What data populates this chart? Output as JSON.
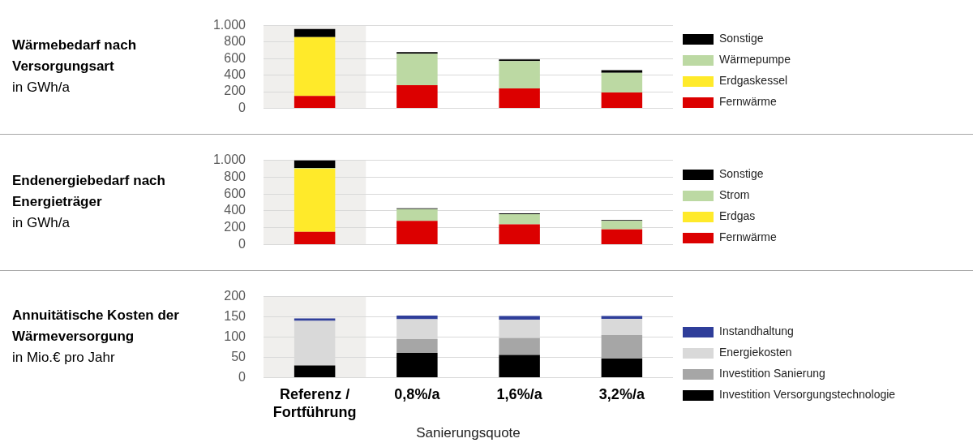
{
  "chart_data": [
    {
      "type": "bar",
      "title": "Wärmebedarf nach Versorgungsart",
      "ylabel": "in GWh/a",
      "stacked": true,
      "categories": [
        "Referenz / Fortführung",
        "0,8%/a",
        "1,6%/a",
        "3,2%/a"
      ],
      "series": [
        {
          "name": "Fernwärme",
          "color": "#dc0000",
          "values": [
            150,
            280,
            240,
            190
          ]
        },
        {
          "name": "Erdgaskessel",
          "color": "#ffea2a",
          "values": [
            710,
            0,
            0,
            0
          ]
        },
        {
          "name": "Wärmepumpe",
          "color": "#bcd9a3",
          "values": [
            0,
            380,
            330,
            240
          ]
        },
        {
          "name": "Sonstige",
          "color": "#000000",
          "values": [
            100,
            20,
            20,
            30
          ]
        }
      ],
      "ylim": [
        0,
        1000
      ],
      "yticks": [
        0,
        200,
        400,
        600,
        800,
        {
          "value": 1000,
          "label": "1.000"
        }
      ],
      "grid": "y",
      "legend": "right",
      "tick_labels": "y",
      "bands": [
        {
          "axis": "x",
          "from": "Referenz / Fortführung",
          "to": "Referenz / Fortführung",
          "color": "#f0efed"
        }
      ]
    },
    {
      "type": "bar",
      "title": "Endenergiebedarf nach Energieträger",
      "ylabel": "in GWh/a",
      "stacked": true,
      "categories": [
        "Referenz / Fortführung",
        "0,8%/a",
        "1,6%/a",
        "3,2%/a"
      ],
      "series": [
        {
          "name": "Fernwärme",
          "color": "#dc0000",
          "values": [
            150,
            280,
            240,
            180
          ]
        },
        {
          "name": "Erdgas",
          "color": "#ffea2a",
          "values": [
            750,
            0,
            0,
            0
          ]
        },
        {
          "name": "Strom",
          "color": "#bcd9a3",
          "values": [
            10,
            140,
            120,
            100
          ]
        },
        {
          "name": "Sonstige",
          "color": "#000000",
          "values": [
            90,
            10,
            10,
            10
          ]
        }
      ],
      "ylim": [
        0,
        1000
      ],
      "yticks": [
        0,
        200,
        400,
        600,
        800,
        {
          "value": 1000,
          "label": "1.000"
        }
      ],
      "grid": "y",
      "legend": "right",
      "tick_labels": "y",
      "bands": [
        {
          "axis": "x",
          "from": "Referenz / Fortführung",
          "to": "Referenz / Fortführung",
          "color": "#f0efed"
        }
      ]
    },
    {
      "type": "bar",
      "title": "Annuitätische Kosten der Wärmeversorgung",
      "ylabel": "in Mio.€ pro Jahr",
      "xlabel": "Sanierungsquote",
      "stacked": true,
      "categories": [
        "Referenz / Fortführung",
        "0,8%/a",
        "1,6%/a",
        "3,2%/a"
      ],
      "series": [
        {
          "name": "Investition Versorgungstechnologie",
          "color": "#000000",
          "values": [
            30,
            61,
            56,
            47
          ]
        },
        {
          "name": "Investition Sanierung",
          "color": "#a6a6a6",
          "values": [
            0,
            34,
            42,
            58
          ]
        },
        {
          "name": "Energiekosten",
          "color": "#d9d9d9",
          "values": [
            110,
            49,
            45,
            40
          ]
        },
        {
          "name": "Instandhaltung",
          "color": "#2f3e9a",
          "values": [
            6,
            9,
            9,
            7
          ]
        }
      ],
      "ylim": [
        0,
        200
      ],
      "yticks": [
        0,
        50,
        100,
        150,
        200
      ],
      "grid": "y",
      "legend": "right",
      "bands": [
        {
          "axis": "x",
          "from": "Referenz / Fortführung",
          "to": "Referenz / Fortführung",
          "color": "#f0efed"
        }
      ]
    }
  ]
}
